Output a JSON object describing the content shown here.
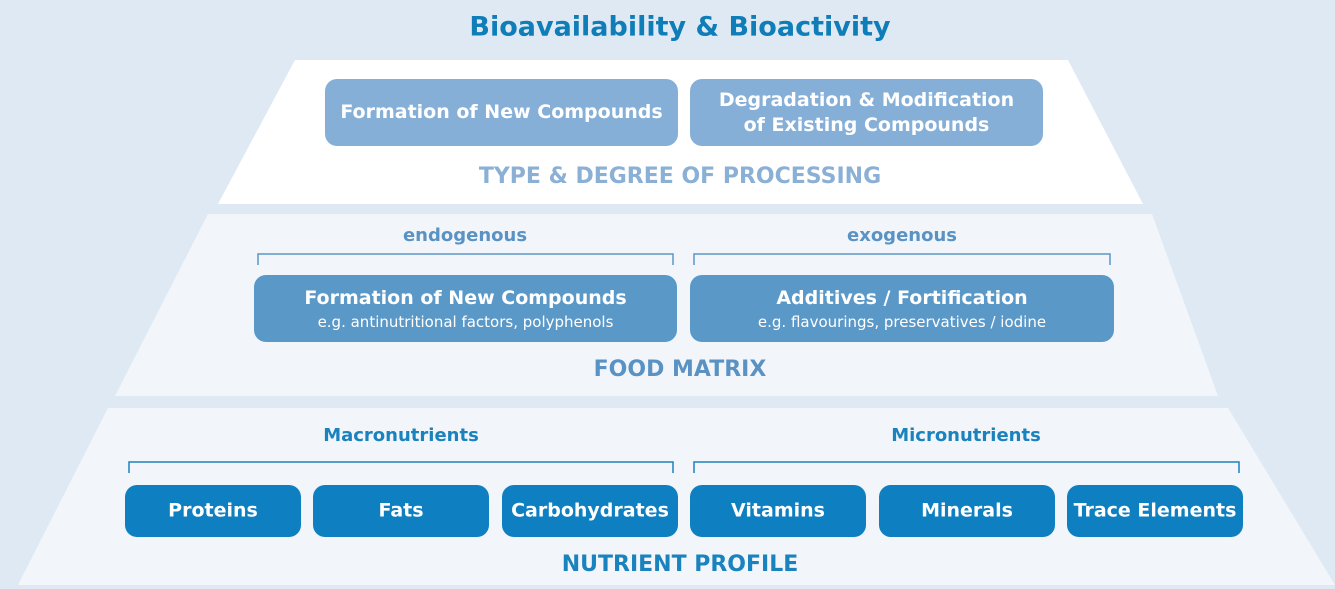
{
  "title": "Bioavailability & Bioactivity",
  "tiers": [
    {
      "label": "TYPE & DEGREE OF PROCESSING",
      "boxes": [
        {
          "text": "Formation of New Compounds"
        },
        {
          "text": "Degradation & Modification",
          "text2": "of Existing Compounds"
        }
      ]
    },
    {
      "label": "FOOD MATRIX",
      "groups": [
        "endogenous",
        "exogenous"
      ],
      "boxes": [
        {
          "text": "Formation of New Compounds",
          "sub": "e.g. antinutritional factors, polyphenols"
        },
        {
          "text": "Additives / Fortification",
          "sub": "e.g. flavourings, preservatives / iodine"
        }
      ]
    },
    {
      "label": "NUTRIENT PROFILE",
      "groups": [
        "Macronutrients",
        "Micronutrients"
      ],
      "boxes": [
        {
          "text": "Proteins"
        },
        {
          "text": "Fats"
        },
        {
          "text": "Carbohydrates"
        },
        {
          "text": "Vitamins"
        },
        {
          "text": "Minerals"
        },
        {
          "text": "Trace Elements"
        }
      ]
    }
  ]
}
